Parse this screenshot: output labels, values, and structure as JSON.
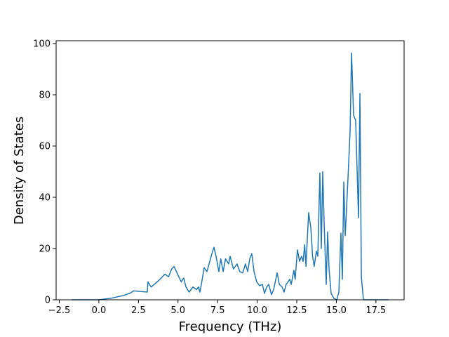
{
  "chart_data": {
    "type": "line",
    "xlabel": "Frequency (THz)",
    "ylabel": "Density of States",
    "color": "#1f77b4",
    "x": [
      -1.73,
      0,
      0.84,
      1.5,
      1.95,
      2.2,
      3.06,
      3.1,
      3.3,
      3.5,
      3.86,
      4.17,
      4.4,
      4.6,
      4.75,
      4.9,
      5.05,
      5.2,
      5.36,
      5.5,
      5.7,
      5.94,
      6.16,
      6.3,
      6.38,
      6.5,
      6.65,
      6.83,
      6.96,
      7.14,
      7.27,
      7.4,
      7.58,
      7.7,
      7.85,
      8.0,
      8.2,
      8.29,
      8.5,
      8.73,
      8.9,
      9.09,
      9.26,
      9.4,
      9.53,
      9.66,
      9.8,
      9.97,
      10.15,
      10.33,
      10.46,
      10.6,
      10.73,
      10.9,
      11.04,
      11.26,
      11.4,
      11.57,
      11.7,
      11.83,
      12.06,
      12.15,
      12.32,
      12.4,
      12.54,
      12.68,
      12.8,
      12.9,
      13.0,
      13.08,
      13.25,
      13.39,
      13.5,
      13.6,
      13.74,
      13.83,
      13.96,
      14.05,
      14.14,
      14.23,
      14.36,
      14.45,
      14.54,
      14.67,
      14.85,
      15.03,
      15.16,
      15.29,
      15.38,
      15.47,
      15.56,
      15.74,
      15.87,
      15.96,
      16.09,
      16.22,
      16.4,
      16.49,
      16.58,
      16.71,
      18.3
    ],
    "values": [
      0,
      0,
      0.7,
      1.6,
      2.5,
      3.5,
      3,
      7,
      5,
      6,
      8,
      10,
      9,
      12,
      13,
      11,
      9,
      7,
      8.5,
      5,
      3,
      5,
      4,
      5,
      3,
      7,
      12.5,
      11,
      14,
      18,
      20.5,
      17,
      11,
      16,
      11,
      16,
      14,
      17,
      12,
      14,
      11,
      10.5,
      14,
      11,
      16,
      18,
      11,
      7,
      5.5,
      6,
      2.5,
      5,
      6,
      2,
      4,
      10.5,
      6,
      5,
      3,
      6,
      8,
      6,
      11.5,
      8,
      19.5,
      15,
      17,
      15,
      21.5,
      13,
      34,
      28,
      17,
      13,
      19,
      17,
      49.5,
      20,
      50,
      30,
      6,
      26.5,
      12,
      2.5,
      0.5,
      0,
      3,
      26,
      8,
      46,
      25,
      48,
      66,
      96.3,
      72,
      70,
      32,
      80.5,
      9,
      0,
      0
    ],
    "xlim": [
      -2.7,
      19.28
    ],
    "ylim": [
      0,
      101.1
    ],
    "xticks": [
      {
        "value": -2.5,
        "label": "−2.5"
      },
      {
        "value": 0,
        "label": "0.0"
      },
      {
        "value": 2.5,
        "label": "2.5"
      },
      {
        "value": 5,
        "label": "5.0"
      },
      {
        "value": 7.5,
        "label": "7.5"
      },
      {
        "value": 10,
        "label": "10.0"
      },
      {
        "value": 12.5,
        "label": "12.5"
      },
      {
        "value": 15,
        "label": "15.0"
      },
      {
        "value": 17.5,
        "label": "17.5"
      }
    ],
    "yticks": [
      0,
      20,
      40,
      60,
      80,
      100
    ]
  }
}
